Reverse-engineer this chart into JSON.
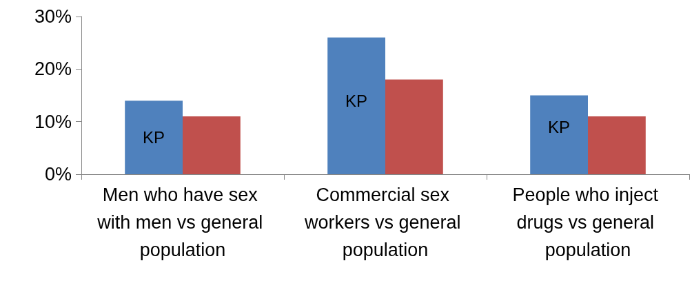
{
  "chart_data": {
    "type": "bar",
    "categories": [
      "Men who have sex with men vs general population",
      "Commercial sex workers vs general population",
      "People who inject drugs vs general population"
    ],
    "series": [
      {
        "color": "#4f81bd",
        "values": [
          14,
          26,
          15
        ]
      },
      {
        "color": "#c0504d",
        "values": [
          11,
          18,
          11
        ]
      }
    ],
    "ylim": [
      0,
      30
    ],
    "yticks": [
      {
        "value": 0,
        "label": "0%"
      },
      {
        "value": 10,
        "label": "10%"
      },
      {
        "value": 20,
        "label": "20%"
      },
      {
        "value": 30,
        "label": "30%"
      }
    ],
    "annotations": [
      {
        "text": "KP",
        "x": "Men who have sex with men vs general population",
        "y": 7
      },
      {
        "text": "KP",
        "x": "Commercial sex workers vs general population",
        "y": 14
      },
      {
        "text": "KP",
        "x": "People who inject drugs vs general population",
        "y": 9
      }
    ]
  }
}
